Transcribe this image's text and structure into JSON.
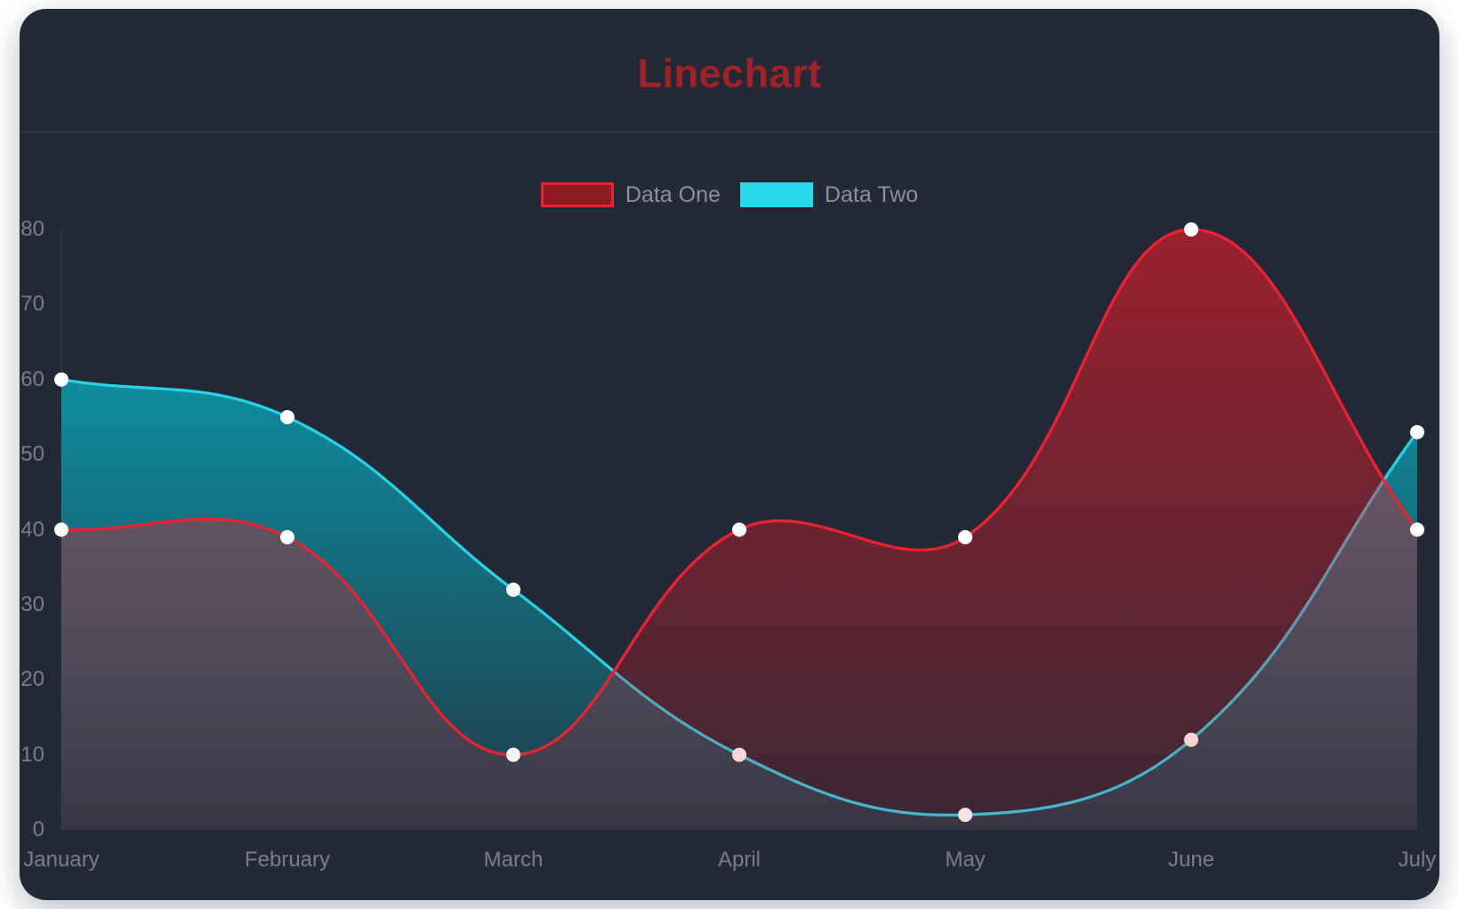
{
  "card": {
    "background": "#232936"
  },
  "header": {
    "title": "Linechart",
    "title_color": "#a02128",
    "separator_color": "#3a4157"
  },
  "legend": {
    "items": [
      {
        "label": "Data One",
        "box_fill": "#8c1a23",
        "box_border": "#ee2130"
      },
      {
        "label": "Data Two",
        "box_fill": "#29d6ea",
        "box_border": "#29d6ea"
      }
    ],
    "label_color": "#8d9096"
  },
  "chart_data": {
    "type": "line",
    "title": "Linechart",
    "categories": [
      "January",
      "February",
      "March",
      "April",
      "May",
      "June",
      "July"
    ],
    "series": [
      {
        "name": "Data One",
        "values": [
          40,
          39,
          10,
          40,
          39,
          80,
          40
        ],
        "line_color": "#ee2130",
        "area_top": "rgba(235,25,40,0.60)",
        "area_bottom": "rgba(235,25,40,0.12)"
      },
      {
        "name": "Data Two",
        "values": [
          60,
          55,
          32,
          10,
          2,
          12,
          53
        ],
        "line_color": "#27d3e6",
        "area_top": "rgba(0,205,225,0.78)",
        "area_bottom": "rgba(0,205,225,0.10)"
      }
    ],
    "y_ticks": [
      0,
      10,
      20,
      30,
      40,
      50,
      60,
      70,
      80
    ],
    "ylim": [
      0,
      80
    ],
    "xlabel": "",
    "ylabel": "",
    "legend_position": "top",
    "grid": "off",
    "curve_tension": 0.4,
    "point_color": "#ffffff",
    "axis_line_color": "#2d3444",
    "tick_color": "#7b7e86"
  }
}
